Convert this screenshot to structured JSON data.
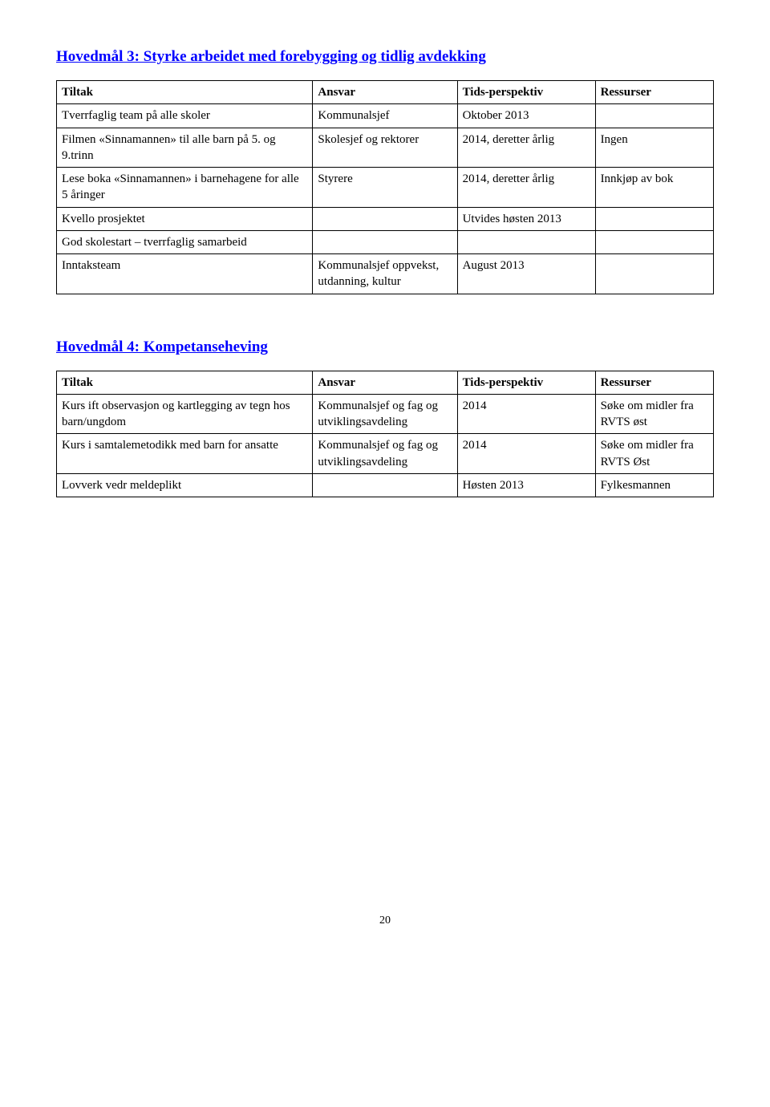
{
  "section1": {
    "heading": "Hovedmål 3: Styrke arbeidet med forebygging og tidlig avdekking",
    "headers": {
      "tiltak": "Tiltak",
      "ansvar": "Ansvar",
      "tids": "Tids-perspektiv",
      "ressurser": "Ressurser"
    },
    "rows": [
      {
        "c1": "Tverrfaglig team på alle skoler",
        "c2": "Kommunalsjef",
        "c3": "Oktober 2013",
        "c4": ""
      },
      {
        "c1": "Filmen «Sinnamannen» til alle barn på 5. og 9.trinn",
        "c2": "Skolesjef og rektorer",
        "c3": "2014, deretter årlig",
        "c4": "Ingen"
      },
      {
        "c1": "Lese boka «Sinnamannen» i barnehagene for alle 5 åringer",
        "c2": "Styrere",
        "c3": "2014, deretter årlig",
        "c4": "Innkjøp av bok"
      },
      {
        "c1": "Kvello prosjektet",
        "c2": "",
        "c3": "Utvides høsten 2013",
        "c4": ""
      },
      {
        "c1": "God skolestart – tverrfaglig samarbeid",
        "c2": "",
        "c3": "",
        "c4": ""
      },
      {
        "c1": "Inntaksteam",
        "c2": "Kommunalsjef oppvekst, utdanning, kultur",
        "c3": "August 2013",
        "c4": ""
      }
    ]
  },
  "section2": {
    "heading": "Hovedmål 4: Kompetanseheving",
    "headers": {
      "tiltak": "Tiltak",
      "ansvar": "Ansvar",
      "tids": "Tids-perspektiv",
      "ressurser": "Ressurser"
    },
    "rows": [
      {
        "c1": "Kurs ift observasjon og kartlegging av tegn hos barn/ungdom",
        "c2": "Kommunalsjef og fag og utviklingsavdeling",
        "c3": "2014",
        "c4": "Søke om midler fra RVTS øst"
      },
      {
        "c1": "Kurs i samtalemetodikk med barn for ansatte",
        "c2": "Kommunalsjef og fag og utviklingsavdeling",
        "c3": "2014",
        "c4": "Søke om midler fra RVTS Øst"
      },
      {
        "c1": "Lovverk vedr meldeplikt",
        "c2": "",
        "c3": "Høsten 2013",
        "c4": "Fylkesmannen"
      }
    ]
  },
  "page_number": "20"
}
